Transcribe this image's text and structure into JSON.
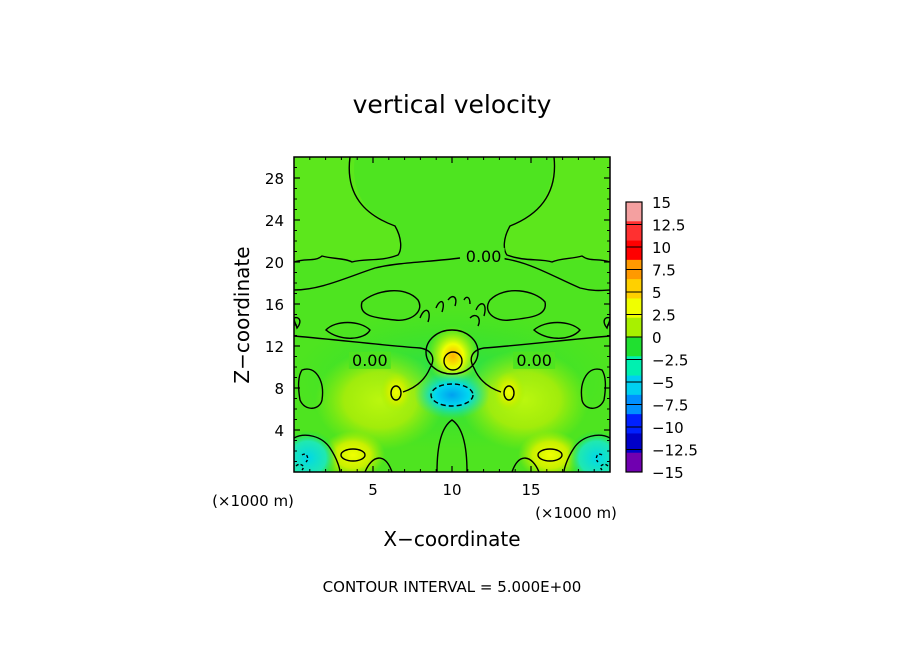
{
  "chart_data": {
    "type": "heatmap",
    "title": "vertical velocity",
    "xlabel": "X−coordinate",
    "ylabel": "Z−coordinate",
    "x_unit": "(×1000 m)",
    "y_unit": "(×1000 m)",
    "xlim": [
      0,
      20
    ],
    "ylim": [
      0,
      30
    ],
    "x_ticks": [
      5,
      10,
      15
    ],
    "y_ticks": [
      4,
      8,
      12,
      16,
      20,
      24,
      28
    ],
    "colorbar": {
      "levels": [
        15,
        12.5,
        10,
        7.5,
        5,
        2.5,
        0,
        -2.5,
        -5,
        -7.5,
        -10,
        -12.5,
        -15
      ],
      "labels": [
        "15",
        "12.5",
        "10",
        "7.5",
        "5",
        "2.5",
        "0",
        "−2.5",
        "−5",
        "−7.5",
        "−10",
        "−12.5",
        "−15"
      ],
      "colors": [
        "#f4a0a0",
        "#ff3030",
        "#ff0000",
        "#ff9900",
        "#ffd000",
        "#f0ff00",
        "#a8f000",
        "#20e030",
        "#00f0b0",
        "#00d0f0",
        "#0090ff",
        "#0020ff",
        "#0000c8",
        "#7000b0"
      ]
    },
    "contour_labels": [
      {
        "text": "0.00",
        "x": 12.0,
        "z": 20.2
      },
      {
        "text": "0.00",
        "x": 4.8,
        "z": 10.3
      },
      {
        "text": "0.00",
        "x": 15.2,
        "z": 10.3
      }
    ],
    "features": [
      {
        "kind": "max",
        "x": 10.0,
        "z": 10.8,
        "value": 7.5
      },
      {
        "kind": "min",
        "x": 10.0,
        "z": 7.5,
        "value": -7.5
      },
      {
        "kind": "max",
        "x": 6.5,
        "z": 7.5,
        "value": 5
      },
      {
        "kind": "max",
        "x": 13.5,
        "z": 7.5,
        "value": 5
      },
      {
        "kind": "max",
        "x": 3.8,
        "z": 1.8,
        "value": 5
      },
      {
        "kind": "max",
        "x": 16.2,
        "z": 1.8,
        "value": 5
      },
      {
        "kind": "min",
        "x": 1.0,
        "z": 1.5,
        "value": -5
      },
      {
        "kind": "min",
        "x": 19.0,
        "z": 1.5,
        "value": -5
      }
    ],
    "grid": false,
    "legend": "colorbar-right"
  },
  "footer": {
    "contour_interval": "CONTOUR INTERVAL = 5.000E+00"
  }
}
